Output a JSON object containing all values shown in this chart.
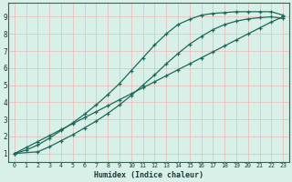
{
  "bg_color": "#d8f0e8",
  "grid_color": "#e8b8b8",
  "line_color": "#1a6b5a",
  "xlabel": "Humidex (Indice chaleur)",
  "xlim": [
    -0.5,
    23.5
  ],
  "ylim": [
    0.5,
    9.8
  ],
  "xticks": [
    0,
    1,
    2,
    3,
    4,
    5,
    6,
    7,
    8,
    9,
    10,
    11,
    12,
    13,
    14,
    15,
    16,
    17,
    18,
    19,
    20,
    21,
    22,
    23
  ],
  "yticks": [
    1,
    2,
    3,
    4,
    5,
    6,
    7,
    8,
    9
  ],
  "curve1_x": [
    0,
    1,
    2,
    3,
    4,
    5,
    6,
    7,
    8,
    9,
    10,
    11,
    12,
    13,
    14,
    15,
    16,
    17,
    18,
    19,
    20,
    21,
    22,
    23
  ],
  "curve1_y": [
    1.0,
    1.35,
    1.7,
    2.05,
    2.4,
    2.75,
    3.1,
    3.45,
    3.8,
    4.15,
    4.5,
    4.85,
    5.2,
    5.55,
    5.9,
    6.25,
    6.6,
    6.95,
    7.3,
    7.65,
    8.0,
    8.35,
    8.7,
    9.0
  ],
  "curve2_x": [
    0,
    1,
    2,
    3,
    4,
    5,
    6,
    7,
    8,
    9,
    10,
    11,
    12,
    13,
    14,
    15,
    16,
    17,
    18,
    19,
    20,
    21,
    22,
    23
  ],
  "curve2_y": [
    1.0,
    1.2,
    1.5,
    1.9,
    2.35,
    2.8,
    3.3,
    3.85,
    4.45,
    5.1,
    5.85,
    6.6,
    7.35,
    8.0,
    8.55,
    8.85,
    9.1,
    9.2,
    9.25,
    9.3,
    9.3,
    9.3,
    9.3,
    9.1
  ],
  "curve3_x": [
    0,
    2,
    3,
    4,
    5,
    6,
    7,
    8,
    9,
    10,
    11,
    12,
    13,
    14,
    15,
    16,
    17,
    18,
    19,
    20,
    21,
    22,
    23
  ],
  "curve3_y": [
    1.0,
    1.1,
    1.4,
    1.75,
    2.1,
    2.5,
    2.9,
    3.35,
    3.85,
    4.4,
    5.0,
    5.6,
    6.25,
    6.85,
    7.4,
    7.85,
    8.25,
    8.55,
    8.75,
    8.88,
    8.95,
    9.0,
    8.9
  ]
}
